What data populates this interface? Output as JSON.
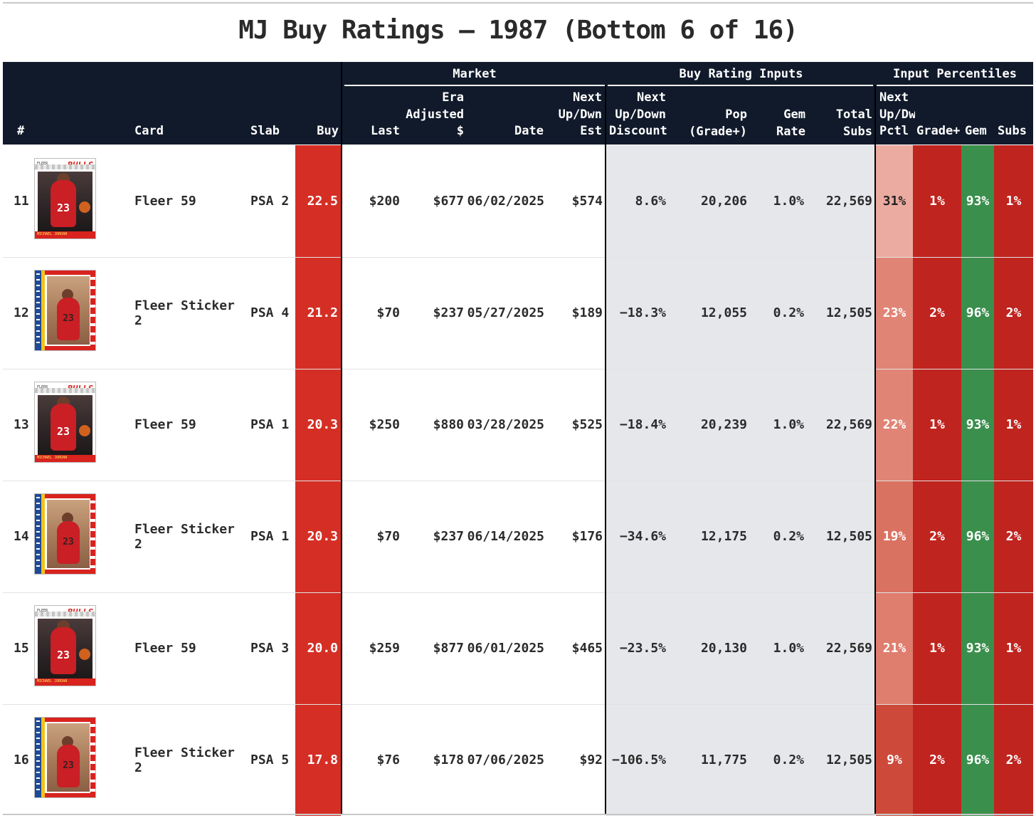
{
  "title": "MJ Buy Ratings — 1987 (Bottom 6 of 16)",
  "colors": {
    "header_bg": "#111a2b",
    "buy_red": "#d52f25",
    "inputs_bg": "#e6e7ea",
    "pctl_dark_red": "#c0241f",
    "gem_green": "#3a8f4c"
  },
  "groups": {
    "market": "Market",
    "inputs": "Buy Rating Inputs",
    "percentiles": "Input Percentiles"
  },
  "columns": {
    "rank": "#",
    "card": "Card",
    "slab": "Slab",
    "buy": "Buy",
    "last": "Last",
    "era_adjusted": [
      "Era",
      "Adjusted",
      "$"
    ],
    "date": "Date",
    "next_est": [
      "Next",
      "Up/Dwn",
      "Est"
    ],
    "discount": [
      "Next",
      "Up/Down",
      "Discount"
    ],
    "pop": [
      "Pop",
      "(Grade+)"
    ],
    "gem_rate": [
      "Gem",
      "Rate"
    ],
    "total_subs": [
      "Total",
      "Subs"
    ],
    "pctl_next": [
      "Next",
      "Up/Dw",
      "Pctl"
    ],
    "pctl_grade": "Grade+",
    "pctl_gem": "Gem",
    "pctl_subs": "Subs"
  },
  "rows": [
    {
      "rank": "11",
      "thumb": "fleer-59-card-icon",
      "card": "Fleer 59",
      "slab": "PSA 2",
      "buy": "22.5",
      "last": "$200",
      "era": "$677",
      "date": "06/02/2025",
      "est": "$574",
      "discount": "8.6%",
      "pop": "20,206",
      "gem_rate": "1.0%",
      "subs": "22,569",
      "p_next": "31%",
      "p_next_color": "#ecaba0",
      "p_grade": "1%",
      "p_gem": "93%",
      "p_subs": "1%"
    },
    {
      "rank": "12",
      "thumb": "fleer-sticker-2-card-icon",
      "card": "Fleer Sticker 2",
      "slab": "PSA 4",
      "buy": "21.2",
      "last": "$70",
      "era": "$237",
      "date": "05/27/2025",
      "est": "$189",
      "discount": "−18.3%",
      "pop": "12,055",
      "gem_rate": "0.2%",
      "subs": "12,505",
      "p_next": "23%",
      "p_next_color": "#e08475",
      "p_grade": "2%",
      "p_gem": "96%",
      "p_subs": "2%"
    },
    {
      "rank": "13",
      "thumb": "fleer-59-card-icon",
      "card": "Fleer 59",
      "slab": "PSA 1",
      "buy": "20.3",
      "last": "$250",
      "era": "$880",
      "date": "03/28/2025",
      "est": "$525",
      "discount": "−18.4%",
      "pop": "20,239",
      "gem_rate": "1.0%",
      "subs": "22,569",
      "p_next": "22%",
      "p_next_color": "#e08576",
      "p_grade": "1%",
      "p_gem": "93%",
      "p_subs": "1%"
    },
    {
      "rank": "14",
      "thumb": "fleer-sticker-2-card-icon",
      "card": "Fleer Sticker 2",
      "slab": "PSA 1",
      "buy": "20.3",
      "last": "$70",
      "era": "$237",
      "date": "06/14/2025",
      "est": "$176",
      "discount": "−34.6%",
      "pop": "12,175",
      "gem_rate": "0.2%",
      "subs": "12,505",
      "p_next": "19%",
      "p_next_color": "#da7262",
      "p_grade": "2%",
      "p_gem": "96%",
      "p_subs": "2%"
    },
    {
      "rank": "15",
      "thumb": "fleer-59-card-icon",
      "card": "Fleer 59",
      "slab": "PSA 3",
      "buy": "20.0",
      "last": "$259",
      "era": "$877",
      "date": "06/01/2025",
      "est": "$465",
      "discount": "−23.5%",
      "pop": "20,130",
      "gem_rate": "1.0%",
      "subs": "22,569",
      "p_next": "21%",
      "p_next_color": "#df7d6e",
      "p_grade": "1%",
      "p_gem": "93%",
      "p_subs": "1%"
    },
    {
      "rank": "16",
      "thumb": "fleer-sticker-2-card-icon",
      "card": "Fleer Sticker 2",
      "slab": "PSA 5",
      "buy": "17.8",
      "last": "$76",
      "era": "$178",
      "date": "07/06/2025",
      "est": "$92",
      "discount": "−106.5%",
      "pop": "11,775",
      "gem_rate": "0.2%",
      "subs": "12,505",
      "p_next": "9%",
      "p_next_color": "#cd4a3a",
      "p_grade": "2%",
      "p_gem": "96%",
      "p_subs": "2%"
    }
  ]
}
